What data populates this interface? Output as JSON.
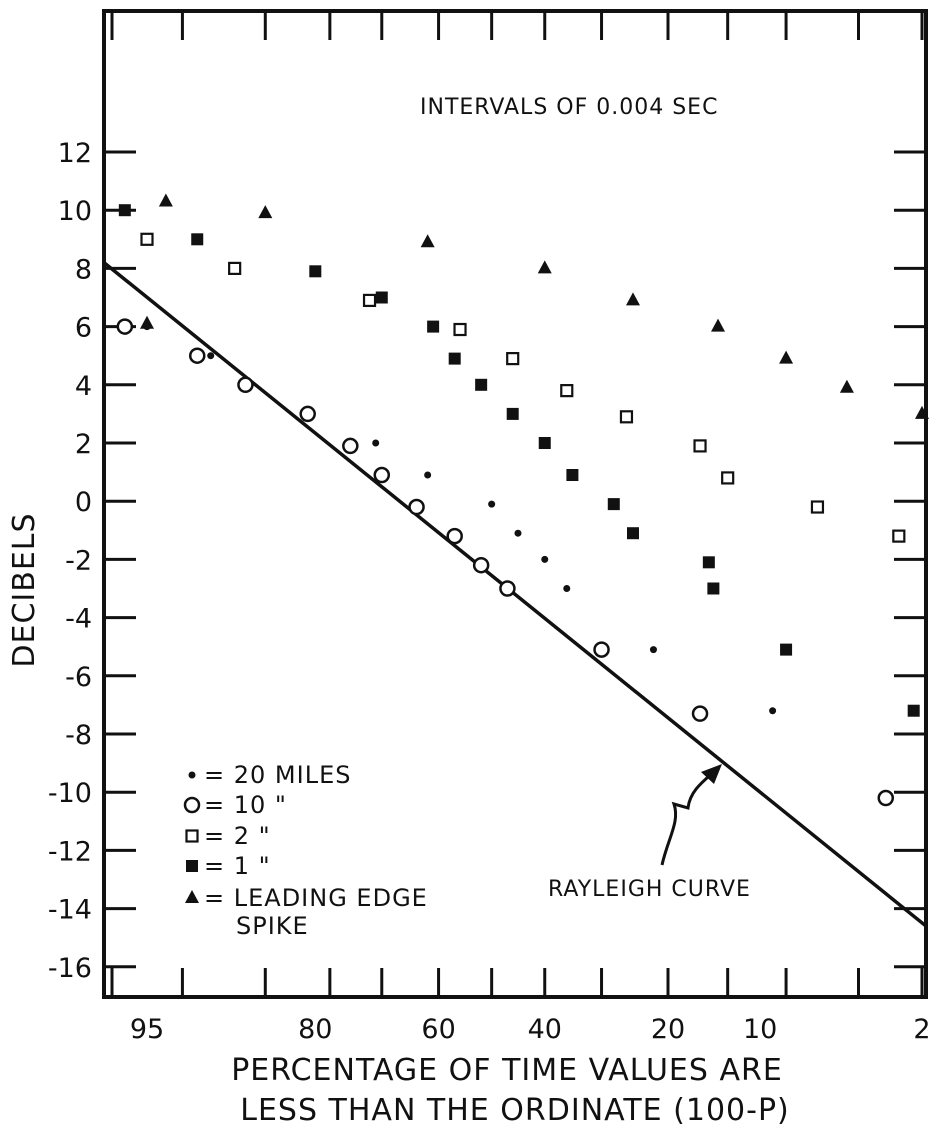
{
  "chart_data": {
    "type": "scatter",
    "title": "",
    "xlabel_line1": "PERCENTAGE OF TIME VALUES ARE",
    "xlabel_line2": "LESS THAN THE ORDINATE (100-P)",
    "ylabel": "DECIBELS",
    "annotation_intervals": "INTERVALS OF 0.004 SEC",
    "annotation_rayleigh": "RAYLEIGH CURVE",
    "x_scale": "probability (normal-scaled percentage, decreasing left to right)",
    "x_ticks": [
      "95",
      "80",
      "60",
      "40",
      "20",
      "10",
      "2"
    ],
    "y_ticks": [
      "12",
      "10",
      "8",
      "6",
      "4",
      "2",
      "0",
      "-2",
      "-4",
      "-6",
      "-8",
      "-10",
      "-12",
      "-14",
      "-16"
    ],
    "ylim": [
      -17,
      14
    ],
    "grid": false,
    "legend_position": "bottom-left",
    "legend": [
      {
        "marker": "dot",
        "label": "= 20 MILES"
      },
      {
        "marker": "open-circle",
        "label": "= 10   \""
      },
      {
        "marker": "open-square",
        "label": "=  2   \""
      },
      {
        "marker": "filled-square",
        "label": "=  1   \""
      },
      {
        "marker": "filled-triangle",
        "label": "= LEADING EDGE",
        "label2": "SPIKE"
      }
    ],
    "rayleigh_curve": [
      {
        "x": 97,
        "y": 8.2
      },
      {
        "x": 2,
        "y": -14.6
      }
    ],
    "series": [
      {
        "id": "20-miles",
        "marker": "dot",
        "points": [
          {
            "x": 95,
            "y": 6
          },
          {
            "x": 91,
            "y": 5
          },
          {
            "x": 71,
            "y": 2
          },
          {
            "x": 62,
            "y": 0.9
          },
          {
            "x": 50,
            "y": -0.1
          },
          {
            "x": 45,
            "y": -1.1
          },
          {
            "x": 40,
            "y": -2
          },
          {
            "x": 36,
            "y": -3
          },
          {
            "x": 22,
            "y": -5.1
          },
          {
            "x": 9,
            "y": -7.2
          }
        ]
      },
      {
        "id": "10-miles",
        "marker": "open-circle",
        "points": [
          {
            "x": 96,
            "y": 6
          },
          {
            "x": 92,
            "y": 5
          },
          {
            "x": 88,
            "y": 4
          },
          {
            "x": 81,
            "y": 3
          },
          {
            "x": 75,
            "y": 1.9
          },
          {
            "x": 70,
            "y": 0.9
          },
          {
            "x": 64,
            "y": -0.2
          },
          {
            "x": 57,
            "y": -1.2
          },
          {
            "x": 52,
            "y": -2.2
          },
          {
            "x": 47,
            "y": -3
          },
          {
            "x": 30,
            "y": -5.1
          },
          {
            "x": 16,
            "y": -7.3
          },
          {
            "x": 3,
            "y": -10.2
          }
        ]
      },
      {
        "id": "2-miles",
        "marker": "open-square",
        "points": [
          {
            "x": 95,
            "y": 9
          },
          {
            "x": 89,
            "y": 8
          },
          {
            "x": 72,
            "y": 6.9
          },
          {
            "x": 56,
            "y": 5.9
          },
          {
            "x": 46,
            "y": 4.9
          },
          {
            "x": 36,
            "y": 3.8
          },
          {
            "x": 26,
            "y": 2.9
          },
          {
            "x": 16,
            "y": 1.9
          },
          {
            "x": 13,
            "y": 0.8
          },
          {
            "x": 6,
            "y": -0.2
          },
          {
            "x": 2.6,
            "y": -1.2
          }
        ]
      },
      {
        "id": "1-mile",
        "marker": "filled-square",
        "points": [
          {
            "x": 96,
            "y": 10
          },
          {
            "x": 92,
            "y": 9
          },
          {
            "x": 80,
            "y": 7.9
          },
          {
            "x": 70,
            "y": 7
          },
          {
            "x": 61,
            "y": 6
          },
          {
            "x": 57,
            "y": 4.9
          },
          {
            "x": 52,
            "y": 4
          },
          {
            "x": 46,
            "y": 3
          },
          {
            "x": 40,
            "y": 2
          },
          {
            "x": 35,
            "y": 0.9
          },
          {
            "x": 28,
            "y": -0.1
          },
          {
            "x": 25,
            "y": -1.1
          },
          {
            "x": 15,
            "y": -2.1
          },
          {
            "x": 14.5,
            "y": -3
          },
          {
            "x": 8,
            "y": -5.1
          },
          {
            "x": 2.2,
            "y": -7.2
          }
        ]
      },
      {
        "id": "leading-edge-spike",
        "marker": "filled-triangle",
        "points": [
          {
            "x": 94,
            "y": 10.3
          },
          {
            "x": 86,
            "y": 9.9
          },
          {
            "x": 62,
            "y": 8.9
          },
          {
            "x": 40,
            "y": 8
          },
          {
            "x": 25,
            "y": 6.9
          },
          {
            "x": 14,
            "y": 6
          },
          {
            "x": 8,
            "y": 4.9
          },
          {
            "x": 4.5,
            "y": 3.9
          },
          {
            "x": 2,
            "y": 3
          },
          {
            "x": 95,
            "y": 6.1
          }
        ]
      }
    ]
  }
}
